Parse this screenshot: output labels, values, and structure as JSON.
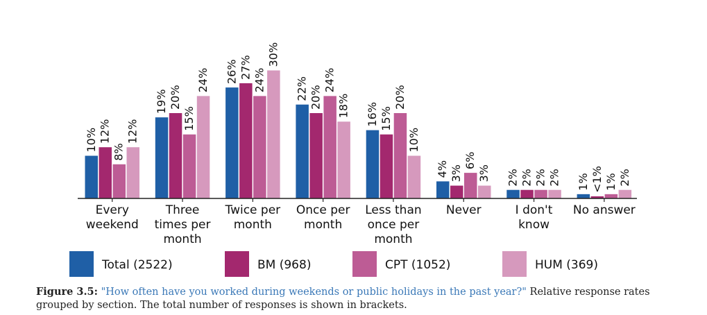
{
  "chart_data": {
    "type": "bar",
    "categories": [
      [
        "Every",
        "weekend"
      ],
      [
        "Three",
        "times per",
        "month"
      ],
      [
        "Twice per",
        "month"
      ],
      [
        "Once per",
        "month"
      ],
      [
        "Less than",
        "once per",
        "month"
      ],
      [
        "Never"
      ],
      [
        "I don't",
        "know"
      ],
      [
        "No answer"
      ]
    ],
    "series": [
      {
        "name": "Total (2522)",
        "color": "#1f5fa6",
        "values": [
          10,
          19,
          26,
          22,
          16,
          4,
          2,
          1
        ],
        "labels": [
          "10%",
          "19%",
          "26%",
          "22%",
          "16%",
          "4%",
          "2%",
          "1%"
        ]
      },
      {
        "name": "BM (968)",
        "color": "#a3286e",
        "values": [
          12,
          20,
          27,
          20,
          15,
          3,
          2,
          0.5
        ],
        "labels": [
          "12%",
          "20%",
          "27%",
          "20%",
          "15%",
          "3%",
          "2%",
          "<1%"
        ]
      },
      {
        "name": "CPT (1052)",
        "color": "#bd5c95",
        "values": [
          8,
          15,
          24,
          24,
          20,
          6,
          2,
          1
        ],
        "labels": [
          "8%",
          "15%",
          "24%",
          "24%",
          "20%",
          "6%",
          "2%",
          "1%"
        ]
      },
      {
        "name": "HUM (369)",
        "color": "#d699bd",
        "values": [
          12,
          24,
          30,
          18,
          10,
          3,
          2,
          2
        ],
        "labels": [
          "12%",
          "24%",
          "30%",
          "18%",
          "10%",
          "3%",
          "2%",
          "2%"
        ]
      }
    ],
    "ylim": [
      0,
      30
    ],
    "grid": false,
    "legend_position": "bottom",
    "title": "",
    "xlabel": "",
    "ylabel": ""
  },
  "caption": {
    "figure": "Figure 3.5:",
    "question": "\"How often have you worked during weekends or public holidays in the past year?\"",
    "rest": " Relative response rates grouped by section. The total number of responses is shown in brackets."
  }
}
